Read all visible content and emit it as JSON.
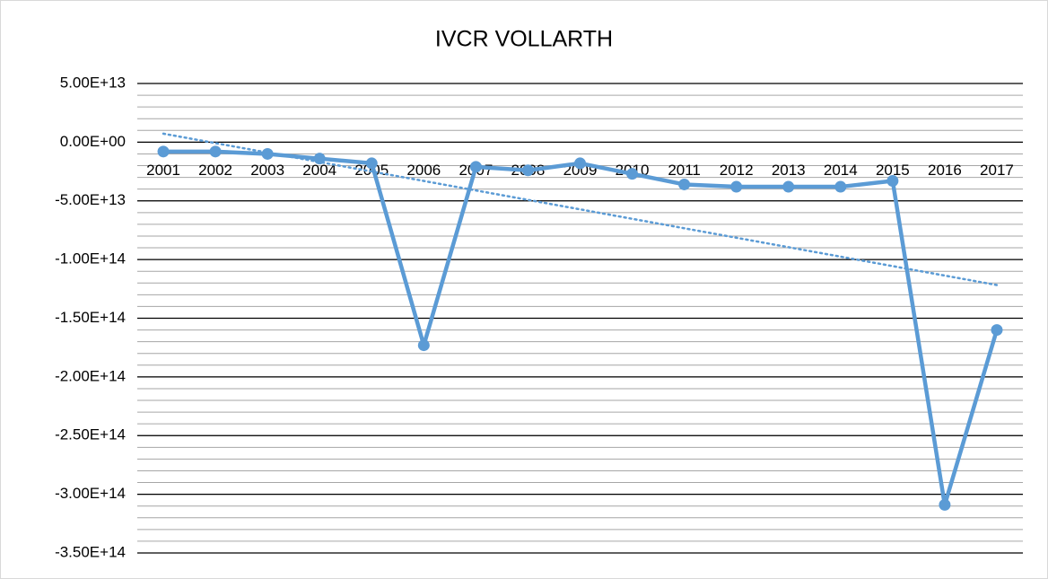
{
  "chart_data": {
    "type": "line",
    "title": "IVCR VOLLARTH",
    "categories": [
      "2001",
      "2002",
      "2003",
      "2004",
      "2005",
      "2006",
      "2007",
      "2008",
      "2009",
      "2010",
      "2011",
      "2012",
      "2013",
      "2014",
      "2015",
      "2016",
      "2017"
    ],
    "series": [
      {
        "color": "#5b9bd5",
        "values": [
          -8000000000000.0,
          -8000000000000.0,
          -10000000000000.0,
          -14000000000000.0,
          -18000000000000.0,
          -173000000000000.0,
          -21000000000000.0,
          -24000000000000.0,
          -18000000000000.0,
          -27000000000000.0,
          -36000000000000.0,
          -38000000000000.0,
          -38000000000000.0,
          -38000000000000.0,
          -33000000000000.0,
          -309000000000000.0,
          -160000000000000.0
        ]
      }
    ],
    "ylim": [
      -350000000000000.0,
      50000000000000.0
    ],
    "yticks": [
      {
        "value": 50000000000000.0,
        "label": "5.00E+13"
      },
      {
        "value": 0,
        "label": "0.00E+00"
      },
      {
        "value": -50000000000000.0,
        "label": "-5.00E+13"
      },
      {
        "value": -100000000000000.0,
        "label": "-1.00E+14"
      },
      {
        "value": -150000000000000.0,
        "label": "-1.50E+14"
      },
      {
        "value": -200000000000000.0,
        "label": "-2.00E+14"
      },
      {
        "value": -250000000000000.0,
        "label": "-2.50E+14"
      },
      {
        "value": -300000000000000.0,
        "label": "-3.00E+14"
      },
      {
        "value": -350000000000000.0,
        "label": "-3.50E+14"
      }
    ],
    "grid": true,
    "minor_grid": true,
    "trendline": "linear",
    "markers": true
  }
}
